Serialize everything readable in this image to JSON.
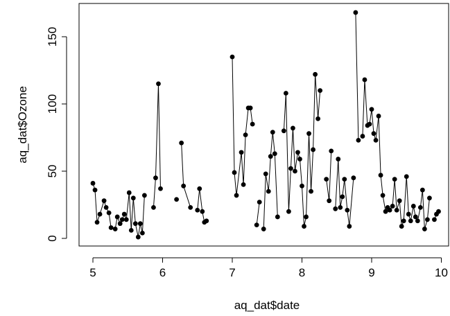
{
  "chart_data": {
    "type": "line",
    "markers": "filled-circle",
    "line_color": "#000000",
    "xlabel": "aq_dat$date",
    "ylabel": "aq_dat$Ozone",
    "xlim": [
      4.9,
      10.0
    ],
    "ylim": [
      0,
      170
    ],
    "xticks": [
      5,
      6,
      7,
      8,
      9,
      10
    ],
    "xtick_labels": [
      "5",
      "6",
      "7",
      "8",
      "9",
      "10"
    ],
    "yticks": [
      0,
      50,
      100,
      150
    ],
    "ytick_labels": [
      "0",
      "50",
      "100",
      "150"
    ],
    "grid": false,
    "box": true,
    "series": [
      {
        "points": [
          [
            5.0,
            41
          ],
          [
            5.03,
            36
          ],
          [
            5.06,
            12
          ],
          [
            5.1,
            18
          ],
          [
            5.16,
            28
          ],
          [
            5.19,
            23
          ],
          [
            5.23,
            19
          ],
          [
            5.26,
            8
          ],
          [
            5.32,
            7
          ],
          [
            5.35,
            16
          ],
          [
            5.39,
            11
          ],
          [
            5.42,
            14
          ],
          [
            5.45,
            18
          ],
          [
            5.48,
            14
          ],
          [
            5.52,
            34
          ],
          [
            5.55,
            6
          ],
          [
            5.58,
            30
          ],
          [
            5.61,
            11
          ],
          [
            5.65,
            1
          ],
          [
            5.68,
            11
          ],
          [
            5.71,
            4
          ],
          [
            5.74,
            32
          ],
          [
            5.87,
            23
          ],
          [
            5.9,
            45
          ],
          [
            5.94,
            115
          ],
          [
            5.97,
            37
          ],
          [
            6.2,
            29
          ],
          [
            6.27,
            71
          ],
          [
            6.3,
            39
          ],
          [
            6.4,
            23
          ],
          [
            6.5,
            21
          ],
          [
            6.53,
            37
          ],
          [
            6.57,
            20
          ],
          [
            6.6,
            12
          ],
          [
            6.63,
            13
          ],
          [
            7.0,
            135
          ],
          [
            7.03,
            49
          ],
          [
            7.06,
            32
          ],
          [
            7.13,
            64
          ],
          [
            7.16,
            40
          ],
          [
            7.19,
            77
          ],
          [
            7.23,
            97
          ],
          [
            7.26,
            97
          ],
          [
            7.29,
            85
          ],
          [
            7.35,
            10
          ],
          [
            7.39,
            27
          ],
          [
            7.45,
            7
          ],
          [
            7.48,
            48
          ],
          [
            7.52,
            35
          ],
          [
            7.55,
            61
          ],
          [
            7.58,
            79
          ],
          [
            7.61,
            63
          ],
          [
            7.65,
            16
          ],
          [
            7.74,
            80
          ],
          [
            7.77,
            108
          ],
          [
            7.81,
            20
          ],
          [
            7.84,
            52
          ],
          [
            7.87,
            82
          ],
          [
            7.9,
            50
          ],
          [
            7.94,
            64
          ],
          [
            7.97,
            59
          ],
          [
            8.0,
            39
          ],
          [
            8.03,
            9
          ],
          [
            8.06,
            16
          ],
          [
            8.1,
            78
          ],
          [
            8.13,
            35
          ],
          [
            8.16,
            66
          ],
          [
            8.19,
            122
          ],
          [
            8.23,
            89
          ],
          [
            8.26,
            110
          ],
          [
            8.35,
            44
          ],
          [
            8.39,
            28
          ],
          [
            8.42,
            65
          ],
          [
            8.48,
            22
          ],
          [
            8.52,
            59
          ],
          [
            8.55,
            23
          ],
          [
            8.58,
            31
          ],
          [
            8.61,
            44
          ],
          [
            8.65,
            21
          ],
          [
            8.68,
            9
          ],
          [
            8.74,
            45
          ],
          [
            8.77,
            168
          ],
          [
            8.81,
            73
          ],
          [
            8.87,
            76
          ],
          [
            8.9,
            118
          ],
          [
            8.94,
            84
          ],
          [
            8.97,
            85
          ],
          [
            9.0,
            96
          ],
          [
            9.03,
            78
          ],
          [
            9.06,
            73
          ],
          [
            9.1,
            91
          ],
          [
            9.13,
            47
          ],
          [
            9.16,
            32
          ],
          [
            9.2,
            20
          ],
          [
            9.23,
            23
          ],
          [
            9.26,
            21
          ],
          [
            9.3,
            24
          ],
          [
            9.33,
            44
          ],
          [
            9.36,
            21
          ],
          [
            9.4,
            28
          ],
          [
            9.43,
            9
          ],
          [
            9.46,
            13
          ],
          [
            9.5,
            46
          ],
          [
            9.53,
            18
          ],
          [
            9.56,
            13
          ],
          [
            9.6,
            24
          ],
          [
            9.63,
            16
          ],
          [
            9.66,
            13
          ],
          [
            9.7,
            23
          ],
          [
            9.73,
            36
          ],
          [
            9.76,
            7
          ],
          [
            9.8,
            14
          ],
          [
            9.83,
            30
          ],
          [
            9.9,
            14
          ],
          [
            9.93,
            18
          ],
          [
            9.96,
            20
          ]
        ],
        "gaps_after_x": [
          5.74,
          5.97,
          6.2,
          6.4,
          6.63,
          7.29,
          7.39,
          7.65,
          8.26,
          8.42,
          8.74,
          8.81,
          9.83
        ]
      }
    ]
  }
}
